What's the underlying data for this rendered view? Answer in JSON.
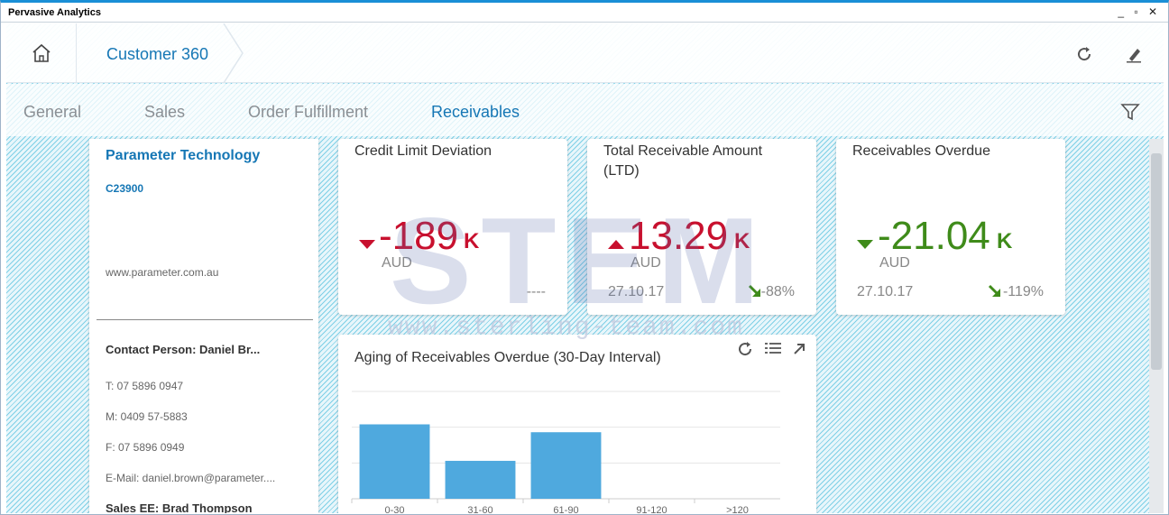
{
  "window": {
    "title": "Pervasive Analytics",
    "controls": "_ ▫ ✕"
  },
  "header": {
    "breadcrumb": "Customer 360"
  },
  "tabs": [
    {
      "label": "General"
    },
    {
      "label": "Sales"
    },
    {
      "label": "Order Fulfillment"
    },
    {
      "label": "Receivables",
      "active": true
    }
  ],
  "customer": {
    "name": "Parameter Technology",
    "id": "C23900",
    "website": "www.parameter.com.au",
    "contact": "Contact Person: Daniel Br...",
    "phone": "T: 07 5896 0947",
    "mobile": "M: 0409 57-5883",
    "fax": "F: 07 5896 0949",
    "email": "E-Mail: daniel.brown@parameter....",
    "sales_ee": "Sales EE: Brad Thompson"
  },
  "kpis": [
    {
      "title": "Credit Limit Deviation",
      "value": "-189",
      "unit": "K",
      "currency": "AUD",
      "date": "",
      "deviation": "----",
      "direction": "down",
      "color": "#c8102e"
    },
    {
      "title": "Total Receivable Amount (LTD)",
      "value": "13.29",
      "unit": "K",
      "currency": "AUD",
      "date": "27.10.17",
      "deviation": "-88%",
      "direction": "up",
      "color": "#c8102e"
    },
    {
      "title": "Receivables Overdue",
      "value": "-21.04",
      "unit": "K",
      "currency": "AUD",
      "date": "27.10.17",
      "deviation": "-119%",
      "direction": "down",
      "color": "#3f8b1a"
    }
  ],
  "chart_title": "Aging of Receivables Overdue (30-Day Interval)",
  "chart_data": {
    "type": "bar",
    "title": "Aging of Receivables Overdue (30-Day Interval)",
    "categories": [
      "0-30",
      "31-60",
      "61-90",
      "91-120",
      ">120"
    ],
    "values": [
      10.4,
      5.3,
      9.3,
      0,
      0
    ],
    "ylim": [
      0,
      15
    ],
    "grid": true,
    "bar_color": "#4fa9de"
  },
  "watermark": {
    "logo": "STEM",
    "url": "www.sterling-team.com"
  },
  "colors": {
    "accent": "#1677b5",
    "negative": "#c8102e",
    "positive": "#3f8b1a",
    "titlebar_border": "#1a8fd6"
  }
}
